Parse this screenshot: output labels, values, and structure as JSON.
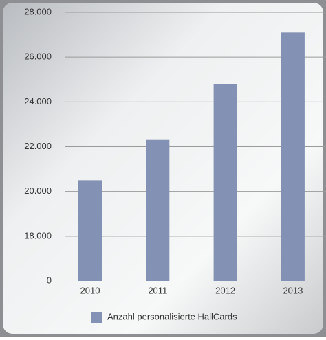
{
  "chart_data": {
    "type": "bar",
    "categories": [
      "2010",
      "2011",
      "2012",
      "2013"
    ],
    "series": [
      {
        "name": "Anzahl personalisierte HallCards",
        "color": "#8391b4",
        "values": [
          20500,
          22300,
          24800,
          27100
        ]
      }
    ],
    "ylim": [
      0,
      28000
    ],
    "yticks": [
      0,
      {
        "value": 18000,
        "label": "18.000"
      },
      {
        "value": 20000,
        "label": "20.000"
      },
      {
        "value": 22000,
        "label": "22.000"
      },
      {
        "value": 24000,
        "label": "24.000"
      },
      {
        "value": 26000,
        "label": "26.000"
      },
      {
        "value": 28000,
        "label": "28.000"
      }
    ],
    "grid": true,
    "legend": "bottom"
  }
}
